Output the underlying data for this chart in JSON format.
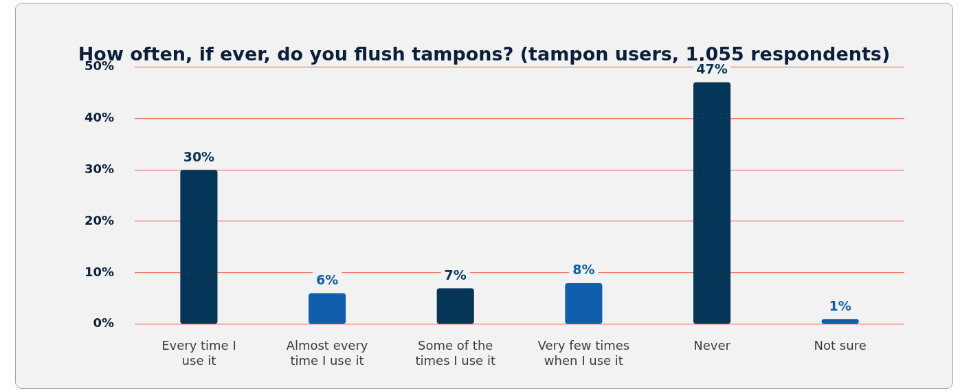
{
  "chart_data": {
    "type": "bar",
    "title": "How often, if ever, do you flush tampons? (tampon users, 1,055 respondents)",
    "categories": [
      "Every time I use it",
      "Almost every time I use it",
      "Some of the times I use it",
      "Very few times when I use it",
      "Never",
      "Not sure"
    ],
    "values": [
      30,
      6,
      7,
      8,
      47,
      1
    ],
    "colors": [
      "#053557",
      "#0f5fad",
      "#053557",
      "#0f5fad",
      "#053557",
      "#0f5fad"
    ],
    "value_labels": [
      "30%",
      "6%",
      "7%",
      "8%",
      "47%",
      "1%"
    ],
    "ylim": [
      0,
      50
    ],
    "yticks": [
      {
        "value": 0,
        "label": "0%"
      },
      {
        "value": 10,
        "label": "10%"
      },
      {
        "value": 20,
        "label": "20%"
      },
      {
        "value": 30,
        "label": "30%"
      },
      {
        "value": 40,
        "label": "40%"
      },
      {
        "value": 50,
        "label": "50%"
      }
    ],
    "grid": "y",
    "legend": false
  }
}
